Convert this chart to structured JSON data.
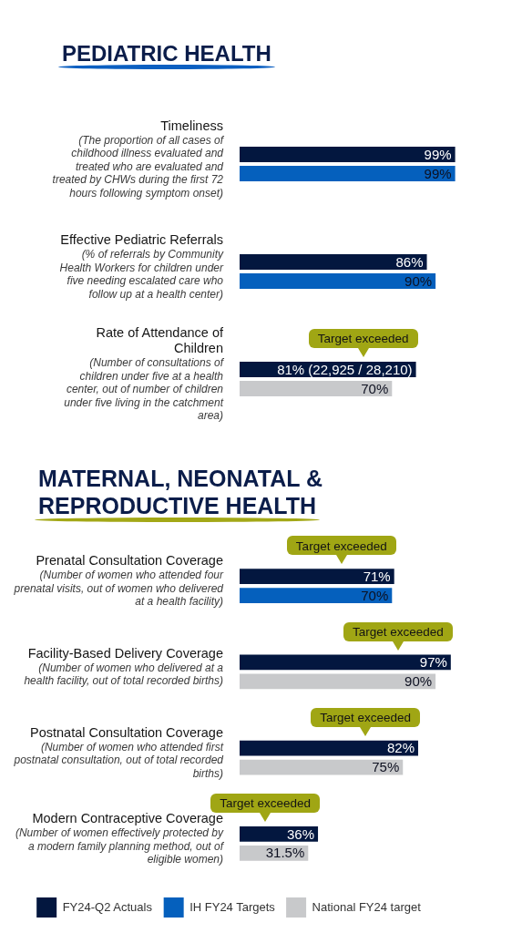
{
  "chart_data": [
    {
      "type": "bar",
      "title": "PEDIATRIC HEALTH",
      "orientation": "horizontal",
      "categories": [
        "Timeliness\n(The proportion of all cases of childhood illness evaluated and treated who are evaluated and treated by CHWs during the first 72 hours following symptom onset)",
        "Effective Pediatric Referrals\n(% of referrals by Community Health Workers for children under five needing escalated care who follow up at a health center)",
        "Rate of Attendance of Children\n(Number of consultations of children under five at a health center, out of number of children under five living in the catchment area)"
      ],
      "series": [
        {
          "color": "#03173f",
          "values": [
            99,
            86,
            81
          ],
          "value_labels": [
            "99%",
            "86%",
            "81% (22,925 / 28,210)"
          ]
        },
        {
          "color": "#0560bd",
          "values": [
            99,
            90,
            null
          ],
          "value_labels": [
            "99%",
            "90%",
            null
          ]
        },
        {
          "color": "#c8c9cb",
          "values": [
            null,
            null,
            70
          ],
          "value_labels": [
            null,
            null,
            "70%"
          ]
        }
      ],
      "tick_labels": "y",
      "annotations": [
        "Target exceeded"
      ]
    },
    {
      "type": "bar",
      "title": "MATERNAL, NEONATAL & REPRODUCTIVE HEALTH",
      "orientation": "horizontal",
      "categories": [
        "Prenatal Consultation Coverage\n(Number of women who attended four prenatal visits, out of women who delivered at a health facility)",
        "Facility-Based Delivery Coverage\n(Number of women who delivered at a health facility, out of total recorded births)",
        "Postnatal Consultation Coverage\n(Number of women who attended first postnatal consultation, out of total recorded births)",
        "Modern Contraceptive Coverage\n(Number of women effectively protected by a modern family planning method, out of eligible women)"
      ],
      "series": [
        {
          "name": "FY24-Q2 Actuals",
          "color": "#03173f",
          "values": [
            71,
            97,
            82,
            36
          ],
          "value_labels": [
            "71%",
            "97%",
            "82%",
            "36%"
          ]
        },
        {
          "name": "IH FY24 Targets",
          "color": "#0560bd",
          "values": [
            70,
            null,
            null,
            null
          ],
          "value_labels": [
            "70%",
            null,
            null,
            null
          ]
        },
        {
          "name": "National FY24 target",
          "color": "#c8c9cb",
          "values": [
            null,
            90,
            75,
            31.5
          ],
          "value_labels": [
            null,
            "90%",
            "75%",
            "31.5%"
          ]
        }
      ],
      "tick_labels": "y",
      "legend": "bottom",
      "annotations": [
        "Target exceeded",
        "Target exceeded",
        "Target exceeded",
        "Target exceeded"
      ]
    }
  ]
}
